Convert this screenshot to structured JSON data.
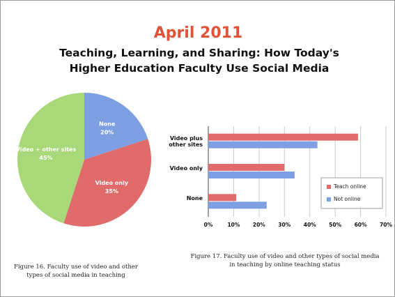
{
  "header": {
    "title": "April 2011",
    "subtitle": "Teaching, Learning, and Sharing: How Today's Higher Education Faculty Use Social Media"
  },
  "chart_data": [
    {
      "type": "pie",
      "categories": [
        "None",
        "Video only",
        "Video + other sites"
      ],
      "values": [
        20,
        35,
        45
      ],
      "value_labels": [
        "20%",
        "35%",
        "45%"
      ],
      "colors": [
        "#7f9fe3",
        "#e16a6a",
        "#a9d879"
      ],
      "caption": "Figure 16. Faculty use of video and other types of social media in teaching"
    },
    {
      "type": "hbar",
      "categories": [
        "Video plus other sites",
        "Video only",
        "None"
      ],
      "series": [
        {
          "name": "Teach online",
          "color": "#e16a6a",
          "values": [
            59,
            30,
            11
          ]
        },
        {
          "name": "Not online",
          "color": "#7f9fe3",
          "values": [
            43,
            34,
            23
          ]
        }
      ],
      "xlim": [
        0,
        70
      ],
      "xticks": [
        {
          "value": 0,
          "label": "0%"
        },
        {
          "value": 10,
          "label": "10%"
        },
        {
          "value": 20,
          "label": "20%"
        },
        {
          "value": 30,
          "label": "30%"
        },
        {
          "value": 40,
          "label": "40%"
        },
        {
          "value": 50,
          "label": "50%"
        },
        {
          "value": 60,
          "label": "60%"
        },
        {
          "value": 70,
          "label": "70%"
        }
      ],
      "grid": true,
      "legend": "right",
      "caption": "Figure 17. Faculty use of video and other types of social media in teaching by online teaching status"
    }
  ]
}
